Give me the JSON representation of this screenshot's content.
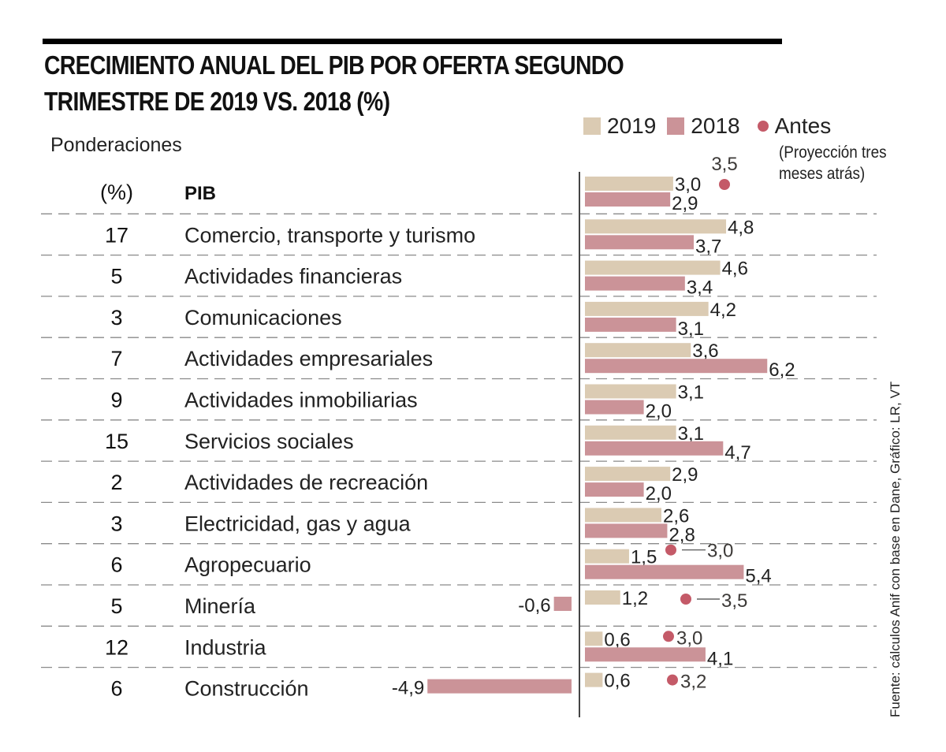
{
  "header": {
    "title_line1": "CRECIMIENTO ANUAL DEL PIB POR OFERTA SEGUNDO",
    "title_line2": "TRIMESTRE DE 2019 VS. 2018 (%)"
  },
  "left_headers": {
    "ponderaciones": "Ponderaciones",
    "pct": "(%)"
  },
  "legend": {
    "items": [
      {
        "label": "2019",
        "color": "#dbcbb3",
        "shape": "square"
      },
      {
        "label": "2018",
        "color": "#cb9398",
        "shape": "square"
      },
      {
        "label": "Antes",
        "color": "#c45a68",
        "shape": "dot"
      }
    ],
    "note_line1": "(Proyección tres",
    "note_line2": "meses atrás)"
  },
  "source": "Fuente: cálculos Anif con base en Dane,     Gráfico: LR, VT",
  "chart_data": {
    "type": "bar",
    "orientation": "horizontal",
    "title": "CRECIMIENTO ANUAL DEL PIB POR OFERTA SEGUNDO TRIMESTRE DE 2019 VS. 2018 (%)",
    "xlabel": "",
    "ylabel": "",
    "xlim": [
      -5,
      7
    ],
    "grid": false,
    "legend_position": "top-right",
    "categories": [
      "PIB",
      "Comercio, transporte y turismo",
      "Actividades financieras",
      "Comunicaciones",
      "Actividades empresariales",
      "Actividades inmobiliarias",
      "Servicios sociales",
      "Actividades de recreación",
      "Electricidad, gas y agua",
      "Agropecuario",
      "Minería",
      "Industria",
      "Construcción"
    ],
    "weights": [
      "(%)",
      "17",
      "5",
      "3",
      "7",
      "9",
      "15",
      "2",
      "3",
      "6",
      "5",
      "12",
      "6"
    ],
    "series": [
      {
        "name": "2019",
        "color": "#dbcbb3",
        "values": [
          3.0,
          4.8,
          4.6,
          4.2,
          3.6,
          3.1,
          3.1,
          2.9,
          2.6,
          1.5,
          1.2,
          0.6,
          0.6
        ],
        "labels": [
          "3,0",
          "4,8",
          "4,6",
          "4,2",
          "3,6",
          "3,1",
          "3,1",
          "2,9",
          "2,6",
          "1,5",
          "1,2",
          "0,6",
          "0,6"
        ]
      },
      {
        "name": "2018",
        "color": "#cb9398",
        "values": [
          2.9,
          3.7,
          3.4,
          3.1,
          6.2,
          2.0,
          4.7,
          2.0,
          2.8,
          5.4,
          -0.6,
          4.1,
          -4.9
        ],
        "labels": [
          "2,9",
          "3,7",
          "3,4",
          "3,1",
          "6,2",
          "2,0",
          "4,7",
          "2,0",
          "2,8",
          "5,4",
          "-0,6",
          "4,1",
          "-4,9"
        ]
      },
      {
        "name": "Antes (Proyección tres meses atrás)",
        "color": "#c45a68",
        "marker": "dot",
        "values": [
          3.5,
          null,
          null,
          null,
          null,
          null,
          null,
          null,
          null,
          3.0,
          3.5,
          3.0,
          3.2
        ],
        "labels": [
          "3,5",
          null,
          null,
          null,
          null,
          null,
          null,
          null,
          null,
          "3,0",
          "3,5",
          "3,0",
          "3,2"
        ]
      }
    ]
  }
}
